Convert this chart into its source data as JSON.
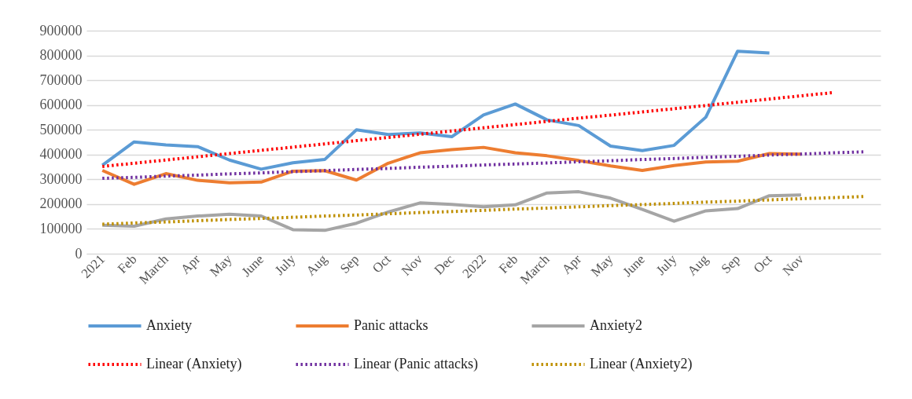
{
  "chart_data": {
    "type": "line",
    "categories": [
      "2021",
      "Feb",
      "March",
      "Apr",
      "May",
      "June",
      "July",
      "Aug",
      "Sep",
      "Oct",
      "Nov",
      "Dec",
      "2022",
      "Feb",
      "March",
      "Apr",
      "May",
      "June",
      "July",
      "Aug",
      "Sep",
      "Oct",
      "Nov",
      null,
      null
    ],
    "ylim": [
      0,
      900000
    ],
    "yticks": [
      0,
      100000,
      200000,
      300000,
      400000,
      500000,
      600000,
      700000,
      800000,
      900000
    ],
    "grid": "y",
    "legend": "bottom",
    "series": [
      {
        "name": "Anxiety",
        "color": "#5b9bd5",
        "line_style": "solid",
        "values": [
          357000,
          451000,
          439000,
          432000,
          378000,
          341000,
          367000,
          380000,
          500000,
          481000,
          487000,
          472000,
          560000,
          604000,
          540000,
          517000,
          434000,
          416000,
          437000,
          551000,
          817000,
          810000,
          null,
          null,
          null
        ]
      },
      {
        "name": "Panic attacks",
        "color": "#ed7d31",
        "line_style": "solid",
        "values": [
          336000,
          280000,
          323000,
          296000,
          286000,
          289000,
          333000,
          335000,
          297000,
          365000,
          407000,
          420000,
          429000,
          407000,
          395000,
          376000,
          354000,
          336000,
          356000,
          370000,
          373000,
          404000,
          402000,
          null,
          null
        ]
      },
      {
        "name": "Anxiety2",
        "color": "#a5a5a5",
        "line_style": "solid",
        "values": [
          115000,
          111000,
          140000,
          152000,
          159000,
          152000,
          97000,
          94000,
          123000,
          168000,
          205000,
          199000,
          189000,
          197000,
          245000,
          250000,
          224000,
          179000,
          131000,
          173000,
          182000,
          234000,
          237000,
          null,
          null
        ]
      },
      {
        "name": "Linear (Anxiety)",
        "color": "#ff0000",
        "line_style": "dotted",
        "values": [
          352000,
          365000,
          378000,
          391000,
          404000,
          417000,
          430000,
          443000,
          456000,
          469000,
          482000,
          495000,
          508000,
          521000,
          534000,
          547000,
          559000,
          572000,
          585000,
          598000,
          611000,
          624000,
          637000,
          650000,
          null
        ]
      },
      {
        "name": "Linear (Panic attacks)",
        "color": "#7030a0",
        "line_style": "dotted",
        "values": [
          304000,
          308000,
          313000,
          317000,
          322000,
          326000,
          331000,
          335000,
          340000,
          344000,
          349000,
          353000,
          358000,
          362000,
          366000,
          371000,
          375000,
          380000,
          384000,
          389000,
          393000,
          398000,
          402000,
          407000,
          411000
        ]
      },
      {
        "name": "Linear (Anxiety2)",
        "color": "#bf9000",
        "line_style": "dotted",
        "values": [
          119000,
          124000,
          128000,
          133000,
          138000,
          142000,
          147000,
          152000,
          156000,
          161000,
          166000,
          170000,
          175000,
          180000,
          184000,
          189000,
          194000,
          198000,
          203000,
          208000,
          212000,
          217000,
          222000,
          226000,
          231000
        ]
      }
    ]
  }
}
